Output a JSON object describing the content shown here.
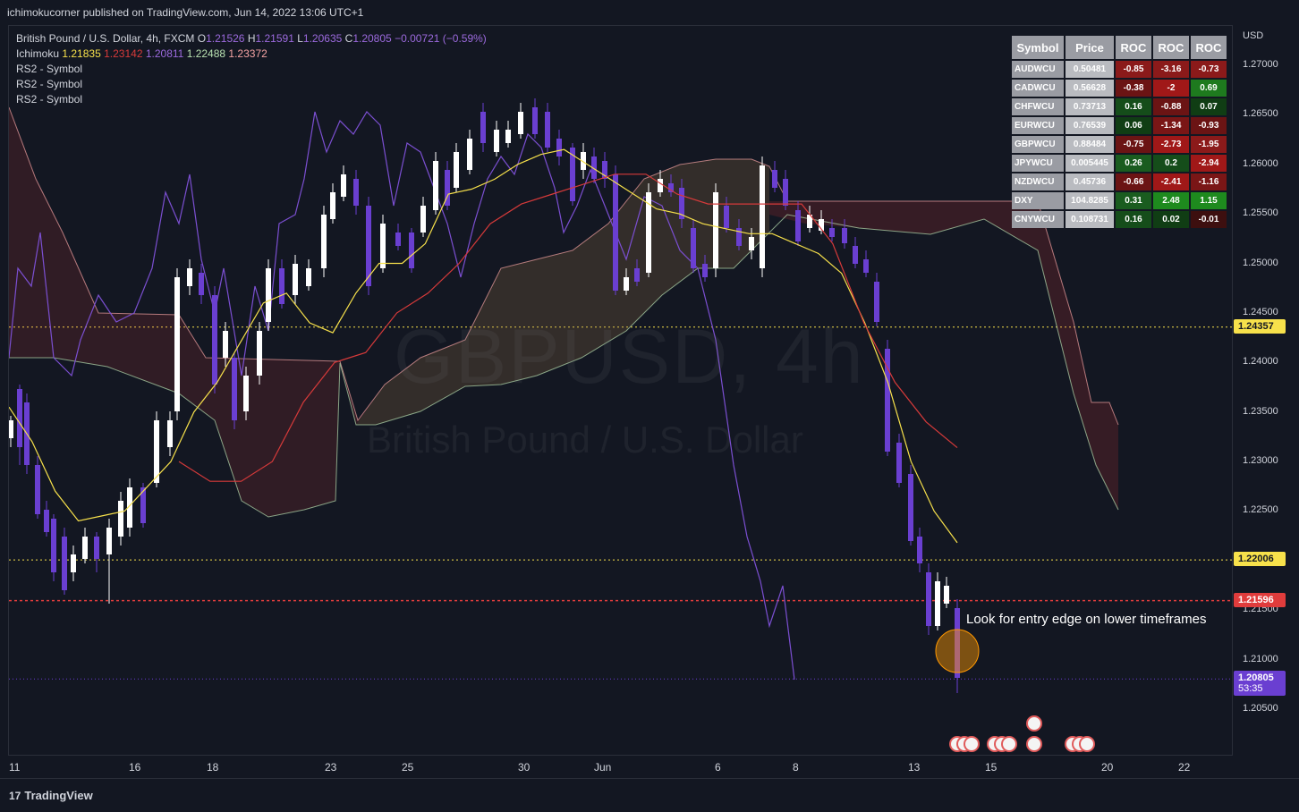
{
  "header": {
    "published": "ichimokucorner published on TradingView.com, Jun 14, 2022 13:06 UTC+1"
  },
  "legend": {
    "symbol": "British Pound / U.S. Dollar, 4h, FXCM",
    "o_label": "O",
    "o_val": "1.21526",
    "h_label": "H",
    "h_val": "1.21591",
    "l_label": "L",
    "l_val": "1.20635",
    "c_label": "C",
    "c_val": "1.20805",
    "change": "−0.00721 (−0.59%)",
    "ichimoku_label": "Ichimoku",
    "ichimoku_vals": [
      "1.21835",
      "1.23142",
      "1.20811",
      "1.22488",
      "1.23372"
    ],
    "ichimoku_colors": [
      "#f7e14b",
      "#d63a3a",
      "#9c6ade",
      "#b8e0b0",
      "#f4a3a3"
    ],
    "rs2": [
      "RS2 - Symbol",
      "RS2 - Symbol",
      "RS2 - Symbol"
    ]
  },
  "watermark": {
    "big": "GBPUSD, 4h",
    "small": "British Pound / U.S. Dollar"
  },
  "annotation": "Look for entry edge on lower timeframes",
  "price_axis": {
    "currency": "USD",
    "ticks": [
      "1.27000",
      "1.26500",
      "1.26000",
      "1.25500",
      "1.25000",
      "1.24500",
      "1.24000",
      "1.23500",
      "1.23000",
      "1.22500",
      "1.22000",
      "1.21500",
      "1.21000",
      "1.20500"
    ],
    "tags": [
      {
        "value": "1.24357",
        "bg": "#f7e14b",
        "fg": "#131722"
      },
      {
        "value": "1.22006",
        "bg": "#f7e14b",
        "fg": "#131722"
      },
      {
        "value": "1.21596",
        "bg": "#e03c3c",
        "fg": "#ffffff"
      },
      {
        "value": "1.20805",
        "bg": "#6a3fd1",
        "fg": "#ffffff",
        "sub": "53:35"
      }
    ]
  },
  "time_axis": [
    "11",
    "16",
    "18",
    "23",
    "25",
    "30",
    "Jun",
    "6",
    "8",
    "13",
    "15",
    "20",
    "22"
  ],
  "roc_table": {
    "headers": [
      "Symbol",
      "Price",
      "ROC",
      "ROC",
      "ROC"
    ],
    "rows": [
      {
        "symbol": "AUDWCU",
        "price": "0.50481",
        "roc": [
          "-0.85",
          "-3.16",
          "-0.73"
        ],
        "colors": [
          "#8b1a1a",
          "#8b1a1a",
          "#8b1a1a"
        ]
      },
      {
        "symbol": "CADWCU",
        "price": "0.56628",
        "roc": [
          "-0.38",
          "-2",
          "0.69"
        ],
        "colors": [
          "#6b1414",
          "#a01818",
          "#1e7a1e"
        ]
      },
      {
        "symbol": "CHFWCU",
        "price": "0.73713",
        "roc": [
          "0.16",
          "-0.88",
          "0.07"
        ],
        "colors": [
          "#154d1a",
          "#6b1414",
          "#103d14"
        ]
      },
      {
        "symbol": "EURWCU",
        "price": "0.76539",
        "roc": [
          "0.06",
          "-1.34",
          "-0.93"
        ],
        "colors": [
          "#103d14",
          "#7a1616",
          "#6b1414"
        ]
      },
      {
        "symbol": "GBPWCU",
        "price": "0.88484",
        "roc": [
          "-0.75",
          "-2.73",
          "-1.95"
        ],
        "colors": [
          "#6b1414",
          "#a01818",
          "#8b1a1a"
        ]
      },
      {
        "symbol": "JPYWCU",
        "price": "0.005445",
        "roc": [
          "0.26",
          "0.2",
          "-2.94"
        ],
        "colors": [
          "#1a5c1f",
          "#154d1a",
          "#a01818"
        ]
      },
      {
        "symbol": "NZDWCU",
        "price": "0.45736",
        "roc": [
          "-0.66",
          "-2.41",
          "-1.16"
        ],
        "colors": [
          "#6b1414",
          "#a01818",
          "#7a1616"
        ]
      },
      {
        "symbol": "DXY",
        "price": "104.8285",
        "roc": [
          "0.31",
          "2.48",
          "1.15"
        ],
        "colors": [
          "#1a5c1f",
          "#1e8a1e",
          "#1e8a1e"
        ]
      },
      {
        "symbol": "CNYWCU",
        "price": "0.108731",
        "roc": [
          "0.16",
          "0.02",
          "-0.01"
        ],
        "colors": [
          "#154d1a",
          "#103d14",
          "#3d0f0f"
        ]
      }
    ]
  },
  "footer": {
    "brand": "TradingView"
  },
  "chart_data": {
    "type": "line",
    "title": "British Pound / U.S. Dollar, 4h, FXCM",
    "xlabel": "",
    "ylabel": "",
    "ylim": [
      1.2005,
      1.2725
    ],
    "grid": false,
    "series": [
      {
        "name": "Price (Close)",
        "values": [
          1.2338,
          1.2275,
          1.2225,
          1.218,
          1.217,
          1.2195,
          1.2185,
          1.2215,
          1.2265,
          1.2295,
          1.2335,
          1.242,
          1.25,
          1.246,
          1.2395,
          1.238,
          1.241,
          1.247,
          1.244,
          1.25,
          1.2545,
          1.26,
          1.2555,
          1.2515,
          1.256,
          1.2595,
          1.258,
          1.263,
          1.2615,
          1.264,
          1.26,
          1.259,
          1.2545,
          1.255,
          1.2505,
          1.2575,
          1.258,
          1.254,
          1.2505,
          1.253,
          1.252,
          1.258,
          1.2545,
          1.2555,
          1.2535,
          1.251,
          1.246,
          1.231,
          1.2235,
          1.2145,
          1.219,
          1.2122,
          1.2081
        ],
        "color": "#d1d4dc"
      },
      {
        "name": "Conversion",
        "values": [
          1.2355,
          1.232,
          1.227,
          1.224,
          1.2245,
          1.225,
          1.2275,
          1.23,
          1.235,
          1.238,
          1.242,
          1.246,
          1.247,
          1.244,
          1.243,
          1.247,
          1.25,
          1.25,
          1.252,
          1.257,
          1.2575,
          1.2585,
          1.26,
          1.261,
          1.2615,
          1.26,
          1.2585,
          1.257,
          1.2555,
          1.255,
          1.254,
          1.2535,
          1.253,
          1.253,
          1.252,
          1.251,
          1.249,
          1.244,
          1.238,
          1.23,
          1.225,
          1.2218
        ],
        "color": "#f7e14b"
      },
      {
        "name": "Base",
        "values": [
          1.23,
          1.228,
          1.228,
          1.23,
          1.236,
          1.24,
          1.241,
          1.245,
          1.247,
          1.25,
          1.254,
          1.256,
          1.257,
          1.258,
          1.259,
          1.259,
          1.257,
          1.256,
          1.256,
          1.256,
          1.256,
          1.252,
          1.244,
          1.238,
          1.234,
          1.2314
        ],
        "color": "#d63a3a"
      }
    ]
  }
}
